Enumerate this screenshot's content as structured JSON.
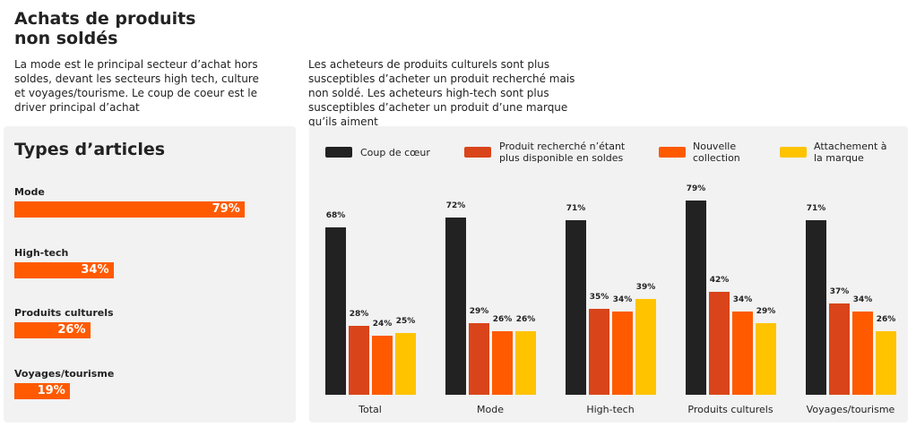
{
  "header": {
    "title": "Achats de produits non soldés",
    "description_left": "La mode est le principal secteur d’achat hors soldes, devant les secteurs high tech, culture et voyages/tourisme. Le coup de coeur est le driver principal d’achat",
    "description_right": "Les acheteurs de produits culturels sont plus susceptibles d’acheter un produit recherché mais non soldé. Les acheteurs high-tech sont plus susceptibles d’acheter un produit d’une marque qu’ils aiment"
  },
  "chart_data": [
    {
      "type": "hbar",
      "title": "Types d’articles",
      "categories": [
        "Mode",
        "High-tech",
        "Produits culturels",
        "Voyages/tourisme"
      ],
      "values": [
        79,
        34,
        26,
        19
      ],
      "value_labels": [
        "79%",
        "34%",
        "26%",
        "19%"
      ],
      "color": "#ff5a00"
    },
    {
      "type": "grouped_bar",
      "categories": [
        "Total",
        "Mode",
        "High-tech",
        "Produits culturels",
        "Voyages/tourisme"
      ],
      "series": [
        {
          "name": "Coup de cœur",
          "color": "#222222",
          "values": [
            68,
            72,
            71,
            79,
            71
          ],
          "value_labels": [
            "68%",
            "72%",
            "71%",
            "79%",
            "71%"
          ]
        },
        {
          "name": "Produit recherché n’étant plus disponible en soldes",
          "color": "#d9441a",
          "values": [
            28,
            29,
            35,
            42,
            37
          ],
          "value_labels": [
            "28%",
            "29%",
            "35%",
            "42%",
            "37%"
          ]
        },
        {
          "name": "Nouvelle collection",
          "color": "#ff5a00",
          "values": [
            24,
            26,
            34,
            34,
            34
          ],
          "value_labels": [
            "24%",
            "26%",
            "34%",
            "34%",
            "34%"
          ]
        },
        {
          "name": "Attachement à la marque",
          "color": "#ffc300",
          "values": [
            25,
            26,
            39,
            29,
            26
          ],
          "value_labels": [
            "25%",
            "26%",
            "39%",
            "29%",
            "26%"
          ]
        }
      ]
    }
  ]
}
